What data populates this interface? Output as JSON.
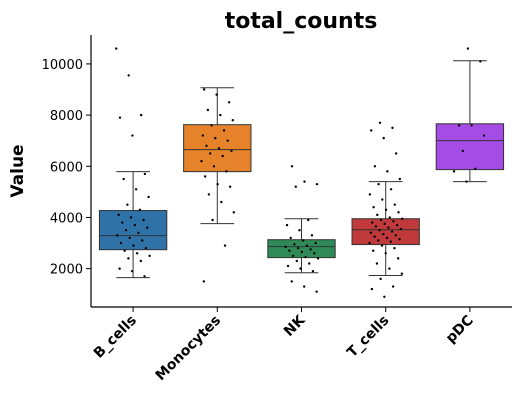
{
  "chart_data": {
    "type": "box",
    "title": "total_counts",
    "ylabel": "Value",
    "categories": [
      "B_cells",
      "Monocytes",
      "NK",
      "T_cells",
      "pDC"
    ],
    "colors": [
      "#2e72a8",
      "#e6822a",
      "#2e8b57",
      "#c0393b",
      "#a64ce6"
    ],
    "boxes": [
      {
        "whislo": 1650,
        "q1": 2740,
        "med": 3290,
        "q3": 4270,
        "whishi": 5790
      },
      {
        "whislo": 3760,
        "q1": 5790,
        "med": 6650,
        "q3": 7625,
        "whishi": 9070
      },
      {
        "whislo": 1840,
        "q1": 2430,
        "med": 2860,
        "q3": 3130,
        "whishi": 3950
      },
      {
        "whislo": 1730,
        "q1": 2940,
        "med": 3520,
        "q3": 3950,
        "whishi": 5400
      },
      {
        "whislo": 5400,
        "q1": 5870,
        "med": 7000,
        "q3": 7660,
        "whishi": 10125
      }
    ],
    "points": [
      [
        10600,
        9550,
        8000,
        7900,
        7200,
        5700,
        5500,
        5100,
        4800,
        4500,
        4300,
        4100,
        4000,
        3900,
        3800,
        3700,
        3600,
        3500,
        3400,
        3300,
        3200,
        3100,
        3000,
        2900,
        2800,
        2700,
        2600,
        2500,
        2400,
        2300,
        2000,
        1900,
        1700
      ],
      [
        9000,
        8800,
        8500,
        8200,
        8000,
        7800,
        7600,
        7400,
        7200,
        7100,
        7000,
        6800,
        6700,
        6600,
        6500,
        6400,
        6200,
        6000,
        5800,
        5600,
        5300,
        5200,
        4900,
        4600,
        4200,
        3900,
        2900,
        1500
      ],
      [
        6000,
        5400,
        5300,
        5200,
        3900,
        3700,
        3500,
        3300,
        3200,
        3100,
        3000,
        2950,
        2900,
        2850,
        2800,
        2750,
        2700,
        2650,
        2600,
        2500,
        2450,
        2400,
        2300,
        2200,
        2100,
        2000,
        1900,
        1500,
        1300,
        1100
      ],
      [
        7700,
        7500,
        7400,
        7100,
        6500,
        6000,
        5800,
        5500,
        5300,
        5100,
        4900,
        4700,
        4500,
        4400,
        4300,
        4200,
        4100,
        4000,
        3950,
        3900,
        3850,
        3800,
        3750,
        3700,
        3650,
        3600,
        3550,
        3500,
        3450,
        3400,
        3350,
        3300,
        3250,
        3200,
        3150,
        3100,
        3050,
        3000,
        2900,
        2800,
        2700,
        2600,
        2400,
        2200,
        2000,
        1800,
        1600,
        1300,
        1200,
        900
      ],
      [
        10600,
        10100,
        7600,
        7600,
        7200,
        6600,
        5900,
        5800,
        5400
      ]
    ],
    "ylim": [
      500,
      11130
    ],
    "yticks": [
      2000,
      4000,
      6000,
      8000,
      10000
    ]
  }
}
